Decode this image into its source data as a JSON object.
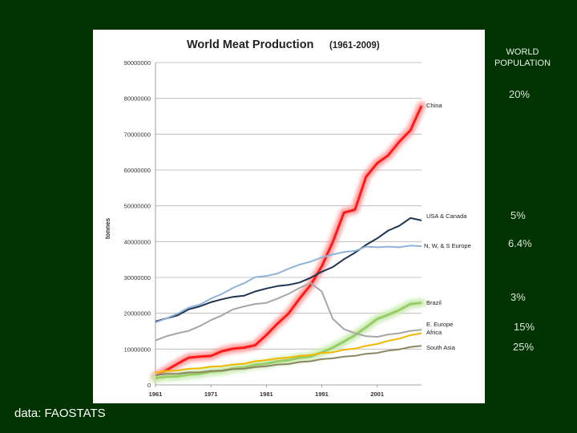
{
  "chart_data": {
    "type": "line",
    "title": "World Meat Production",
    "subtitle": "(1961-2009)",
    "xlabel": "",
    "ylabel": "tonnes",
    "xlim": [
      1961,
      2009
    ],
    "ylim": [
      0,
      90000000
    ],
    "grid": true,
    "y_ticks": [
      0,
      10000000,
      20000000,
      30000000,
      40000000,
      50000000,
      60000000,
      70000000,
      80000000,
      90000000
    ],
    "y_tick_labels": [
      "0",
      "10000000",
      "20000000",
      "30000000",
      "40000000",
      "50000000",
      "60000000",
      "70000000",
      "80000000",
      "90000000"
    ],
    "x_ticks": [
      1961,
      1971,
      1981,
      1991,
      2001
    ],
    "x_tick_labels": [
      "1961",
      "1971",
      "1981",
      "1991",
      "2001"
    ],
    "x": [
      1961,
      1963,
      1965,
      1967,
      1969,
      1971,
      1973,
      1975,
      1977,
      1979,
      1981,
      1983,
      1985,
      1987,
      1989,
      1991,
      1993,
      1995,
      1997,
      1999,
      2001,
      2003,
      2005,
      2007,
      2009
    ],
    "series": [
      {
        "name": "China",
        "color": "#ff1a1a",
        "highlight": "#ff9a9a",
        "values": [
          2500000,
          4000000,
          6000000,
          7500000,
          8000000,
          8000000,
          9500000,
          10000000,
          10500000,
          11000000,
          14000000,
          17000000,
          20000000,
          24000000,
          28000000,
          33000000,
          40000000,
          48000000,
          49000000,
          58000000,
          62000000,
          64000000,
          68000000,
          71000000,
          78000000
        ]
      },
      {
        "name": "USA & Canada",
        "color": "#1f3552",
        "values": [
          17800000,
          18500000,
          19500000,
          21000000,
          22000000,
          23000000,
          24000000,
          24500000,
          25000000,
          26000000,
          27000000,
          27500000,
          28000000,
          28500000,
          30000000,
          31500000,
          33000000,
          35000000,
          37000000,
          39000000,
          41000000,
          43000000,
          44500000,
          46500000,
          46000000
        ]
      },
      {
        "name": "N, W, & S Europe",
        "color": "#8fb3d9",
        "values": [
          17500000,
          18500000,
          20000000,
          21500000,
          22500000,
          24000000,
          25500000,
          27000000,
          28500000,
          30000000,
          30500000,
          31000000,
          32500000,
          33500000,
          34500000,
          35500000,
          36500000,
          37000000,
          37500000,
          38500000,
          38500000,
          38500000,
          38500000,
          38800000,
          38800000
        ]
      },
      {
        "name": "Brazil",
        "color": "#99cc66",
        "highlight": "#c8ecb0",
        "values": [
          2000000,
          2200000,
          2500000,
          2800000,
          3200000,
          3600000,
          4000000,
          4500000,
          5000000,
          5500000,
          6000000,
          6500000,
          7000000,
          7500000,
          8000000,
          9000000,
          10500000,
          12000000,
          14000000,
          16000000,
          18500000,
          19500000,
          21000000,
          22500000,
          23000000
        ]
      },
      {
        "name": "E. Europe",
        "color": "#a6a6a6",
        "values": [
          12500000,
          13500000,
          14500000,
          15000000,
          16500000,
          18000000,
          19500000,
          21000000,
          22000000,
          22500000,
          23000000,
          24000000,
          25500000,
          27000000,
          28500000,
          26000000,
          18500000,
          15500000,
          14500000,
          13500000,
          13500000,
          14000000,
          14500000,
          15000000,
          15500000
        ]
      },
      {
        "name": "Africa",
        "color": "#f2b800",
        "values": [
          3500000,
          3800000,
          4100000,
          4400000,
          4700000,
          5000000,
          5300000,
          5600000,
          6000000,
          6500000,
          7000000,
          7300000,
          7700000,
          8000000,
          8400000,
          8800000,
          9200000,
          9700000,
          10200000,
          10800000,
          11500000,
          12200000,
          13000000,
          13800000,
          14500000
        ]
      },
      {
        "name": "South Asia",
        "color": "#8c8660",
        "values": [
          2800000,
          3000000,
          3200000,
          3400000,
          3600000,
          3800000,
          4100000,
          4300000,
          4600000,
          4900000,
          5300000,
          5600000,
          5900000,
          6300000,
          6700000,
          7100000,
          7500000,
          7800000,
          8200000,
          8600000,
          9000000,
          9500000,
          10000000,
          10500000,
          11000000
        ]
      }
    ]
  },
  "population": {
    "heading_line1": "WORLD",
    "heading_line2": "POPULATION",
    "china": "20%",
    "usa_canada": "5%",
    "europe": "6.4%",
    "brazil": "3%",
    "e_europe_africa": "15%",
    "south_asia": "25%"
  },
  "source": "data: FAOSTATS",
  "colors": {
    "background": "#003300",
    "panel": "#ffffff",
    "gridline": "#b3b3b3"
  }
}
